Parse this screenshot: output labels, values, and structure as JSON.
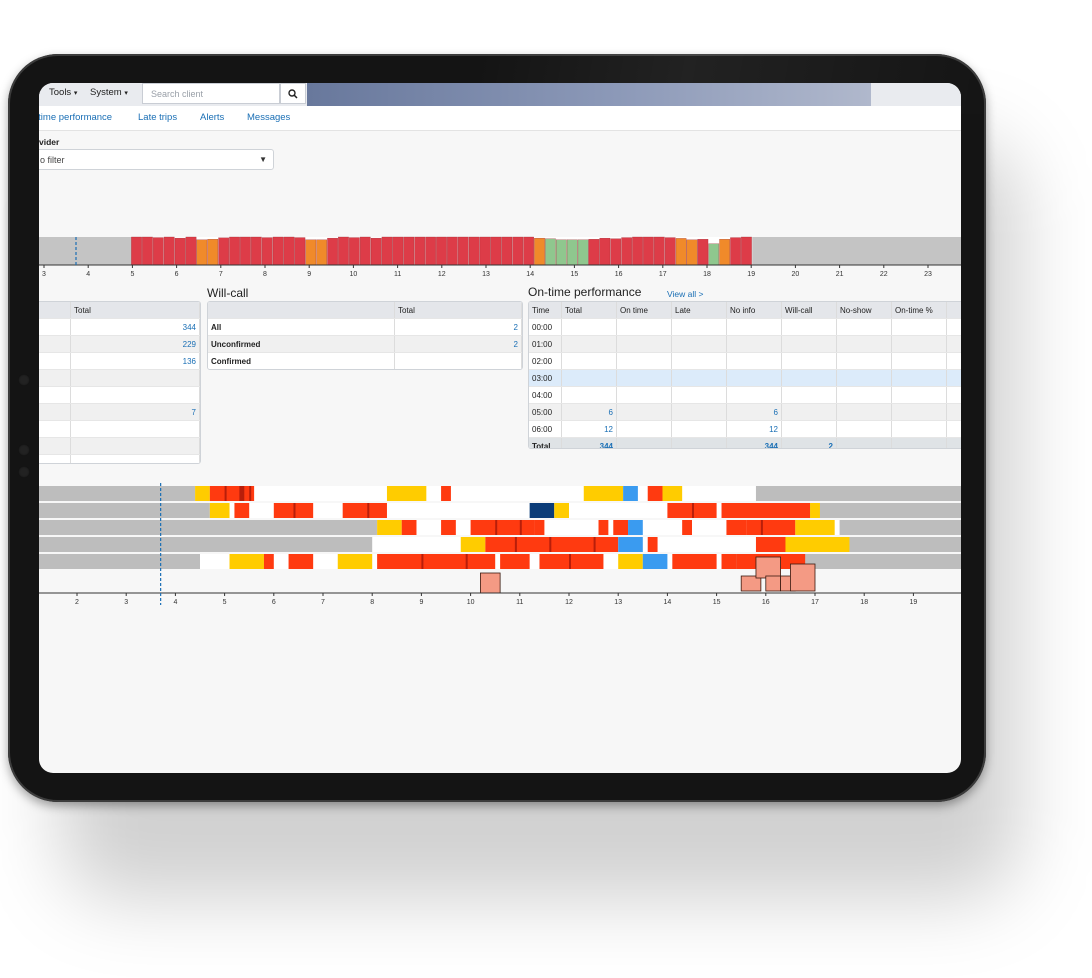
{
  "toolbar": {
    "tools_label": "Tools",
    "system_label": "System",
    "search_placeholder": "Search client"
  },
  "tabs": [
    "-time performance",
    "Late trips",
    "Alerts",
    "Messages"
  ],
  "filter": {
    "label": "vider",
    "value": "o filter"
  },
  "top_chart": {
    "ticks": [
      "3",
      "4",
      "5",
      "6",
      "7",
      "8",
      "9",
      "10",
      "11",
      "12",
      "13",
      "14",
      "15",
      "16",
      "17",
      "18",
      "19",
      "20",
      "21",
      "22",
      "23"
    ],
    "colors": {
      "idle": "#c4c4c4",
      "red": "#dd3c48",
      "orange": "#f08a2a",
      "green": "#8fc78e"
    },
    "bar_heights": [
      1.0,
      1.0,
      0.98,
      1.0,
      0.96,
      1.0,
      0.9,
      0.92,
      0.97,
      1.0,
      1.0,
      1.0,
      0.98,
      1.0,
      1.0,
      0.98,
      0.9,
      0.9,
      0.96,
      1.0,
      0.98,
      1.0,
      0.96,
      1.0,
      1.0,
      1.0,
      1.0,
      1.0,
      1.0,
      1.0,
      1.0,
      1.0,
      1.0,
      1.0,
      1.0,
      1.0,
      1.0,
      0.96,
      0.94,
      0.9,
      0.9,
      0.9,
      0.92,
      0.96,
      0.94,
      0.98,
      1.0,
      1.0,
      1.0,
      0.98,
      0.95,
      0.9,
      0.92,
      0.76,
      0.92,
      0.98,
      1.0
    ],
    "bar_kinds": [
      "red",
      "red",
      "red",
      "red",
      "red",
      "red",
      "orange",
      "orange",
      "red",
      "red",
      "red",
      "red",
      "red",
      "red",
      "red",
      "red",
      "orange",
      "orange",
      "red",
      "red",
      "red",
      "red",
      "red",
      "red",
      "red",
      "red",
      "red",
      "red",
      "red",
      "red",
      "red",
      "red",
      "red",
      "red",
      "red",
      "red",
      "red",
      "orange",
      "green",
      "green",
      "green",
      "green",
      "red",
      "red",
      "red",
      "red",
      "red",
      "red",
      "red",
      "red",
      "orange",
      "orange",
      "red",
      "green",
      "orange",
      "red",
      "red"
    ]
  },
  "summary_table": {
    "header": "Total",
    "rows": [
      "344",
      "229",
      "136",
      "",
      "",
      "7",
      "",
      "",
      ""
    ]
  },
  "will_call": {
    "title": "Will-call",
    "header": "Total",
    "rows": [
      {
        "label": "All",
        "value": "2"
      },
      {
        "label": "Unconfirmed",
        "value": "2"
      },
      {
        "label": "Confirmed",
        "value": ""
      }
    ]
  },
  "on_time": {
    "title": "On-time performance",
    "view_all": "View all >",
    "headers": [
      "Time",
      "Total",
      "On time",
      "Late",
      "No info",
      "Will-call",
      "No-show",
      "On-time %"
    ],
    "rows": [
      [
        "00:00",
        "",
        "",
        "",
        "",
        "",
        "",
        ""
      ],
      [
        "01:00",
        "",
        "",
        "",
        "",
        "",
        "",
        ""
      ],
      [
        "02:00",
        "",
        "",
        "",
        "",
        "",
        "",
        ""
      ],
      [
        "03:00",
        "",
        "",
        "",
        "",
        "",
        "",
        ""
      ],
      [
        "04:00",
        "",
        "",
        "",
        "",
        "",
        "",
        ""
      ],
      [
        "05:00",
        "6",
        "",
        "",
        "6",
        "",
        "",
        ""
      ],
      [
        "06:00",
        "12",
        "",
        "",
        "12",
        "",
        "",
        ""
      ]
    ],
    "total_row": [
      "Total",
      "344",
      "",
      "",
      "344",
      "2",
      "",
      ""
    ]
  },
  "gantt": {
    "ticks": [
      "2",
      "3",
      "4",
      "5",
      "6",
      "7",
      "8",
      "9",
      "10",
      "11",
      "12",
      "13",
      "14",
      "15",
      "16",
      "17",
      "18",
      "19"
    ],
    "colors": {
      "idle": "#bdbdbd",
      "yellow": "#ffcc00",
      "red": "#ff3a10",
      "darkred": "#b81e0a",
      "blue": "#3a9bf0",
      "navy": "#0b3c78",
      "salmon": "#f49a84"
    }
  }
}
